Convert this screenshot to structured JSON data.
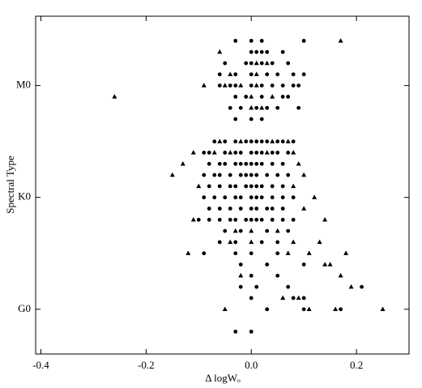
{
  "chart_data": {
    "type": "scatter",
    "xlabel": "Δ logWₒ",
    "ylabel": "Spectral Type",
    "xlim": [
      -0.41,
      0.3
    ],
    "ylim": [
      -4,
      26.2
    ],
    "xticks": [
      -0.4,
      -0.2,
      {
        "value": 0,
        "label": "0.0"
      },
      0.2
    ],
    "yticks": [
      {
        "value": 0,
        "label": "G0"
      },
      {
        "value": 10,
        "label": "K0"
      },
      {
        "value": 20,
        "label": "M0"
      }
    ],
    "grid": false,
    "series": [
      {
        "marker": "circle",
        "color": "#000000",
        "x": [
          -0.03,
          0.0,
          0.02,
          0.1,
          0.0,
          0.01,
          0.02,
          0.03,
          0.06,
          -0.05,
          -0.01,
          0.0,
          0.02,
          0.04,
          0.07,
          -0.06,
          -0.03,
          0.0,
          0.03,
          0.05,
          0.08,
          0.1,
          -0.06,
          -0.04,
          -0.03,
          0.0,
          0.02,
          0.04,
          0.06,
          0.08,
          0.09,
          -0.03,
          -0.01,
          0.02,
          0.06,
          0.07,
          -0.04,
          -0.02,
          0.01,
          0.03,
          0.05,
          0.09,
          -0.03,
          0.0,
          0.02,
          -0.07,
          -0.05,
          -0.03,
          -0.01,
          0.0,
          0.01,
          0.02,
          0.03,
          0.05,
          0.06,
          0.08,
          -0.09,
          -0.08,
          -0.05,
          -0.03,
          -0.02,
          0.0,
          0.01,
          0.02,
          0.04,
          0.05,
          0.07,
          -0.08,
          -0.06,
          -0.05,
          -0.03,
          -0.02,
          -0.01,
          0.0,
          0.01,
          0.02,
          0.04,
          0.06,
          -0.09,
          -0.07,
          -0.06,
          -0.04,
          -0.02,
          -0.01,
          0.0,
          0.01,
          0.03,
          0.05,
          0.07,
          -0.08,
          -0.06,
          -0.04,
          -0.03,
          -0.01,
          0.0,
          0.01,
          0.02,
          0.04,
          0.06,
          -0.09,
          -0.07,
          -0.05,
          -0.03,
          -0.02,
          0.0,
          0.01,
          0.02,
          0.04,
          0.06,
          0.08,
          -0.08,
          -0.06,
          -0.04,
          -0.02,
          0.0,
          0.01,
          0.03,
          0.04,
          0.06,
          -0.1,
          -0.08,
          -0.06,
          -0.04,
          -0.03,
          -0.01,
          0.0,
          0.01,
          0.02,
          0.04,
          0.06,
          0.08,
          -0.05,
          -0.02,
          0.03,
          0.07,
          -0.06,
          -0.03,
          0.02,
          0.05,
          -0.09,
          -0.03,
          0.0,
          0.05,
          -0.02,
          0.03,
          0.1,
          0.0,
          0.05,
          -0.02,
          0.01,
          0.07,
          0.21,
          0.0,
          0.08,
          0.1,
          0.03,
          0.1,
          0.17,
          -0.03,
          0.0
        ],
        "values": [
          24,
          24,
          24,
          24,
          23,
          23,
          23,
          23,
          23,
          22,
          22,
          22,
          22,
          22,
          22,
          21,
          21,
          21,
          21,
          21,
          21,
          21,
          20,
          20,
          20,
          20,
          20,
          20,
          20,
          20,
          20,
          19,
          19,
          19,
          19,
          19,
          18,
          18,
          18,
          18,
          18,
          18,
          17,
          17,
          17,
          15,
          15,
          15,
          15,
          15,
          15,
          15,
          15,
          15,
          15,
          15,
          14,
          14,
          14,
          14,
          14,
          14,
          14,
          14,
          14,
          14,
          14,
          13,
          13,
          13,
          13,
          13,
          13,
          13,
          13,
          13,
          13,
          13,
          12,
          12,
          12,
          12,
          12,
          12,
          12,
          12,
          12,
          12,
          12,
          11,
          11,
          11,
          11,
          11,
          11,
          11,
          11,
          11,
          11,
          10,
          10,
          10,
          10,
          10,
          10,
          10,
          10,
          10,
          10,
          10,
          9,
          9,
          9,
          9,
          9,
          9,
          9,
          9,
          9,
          8,
          8,
          8,
          8,
          8,
          8,
          8,
          8,
          8,
          8,
          8,
          8,
          7,
          7,
          7,
          7,
          6,
          6,
          6,
          6,
          5,
          5,
          5,
          5,
          4,
          4,
          4,
          3,
          3,
          2,
          2,
          2,
          2,
          1,
          1,
          1,
          0,
          0,
          0,
          -2,
          -2
        ]
      },
      {
        "marker": "triangle",
        "color": "#000000",
        "x": [
          0.17,
          -0.06,
          0.01,
          0.03,
          -0.04,
          0.01,
          -0.09,
          -0.05,
          -0.02,
          0.01,
          -0.26,
          0.0,
          0.04,
          0.0,
          0.02,
          -0.06,
          -0.02,
          0.04,
          0.07,
          -0.11,
          -0.07,
          -0.04,
          0.03,
          0.08,
          -0.13,
          0.09,
          -0.15,
          0.1,
          -0.1,
          0.08,
          0.12,
          0.1,
          -0.11,
          0.14,
          -0.03,
          0.0,
          0.05,
          -0.04,
          0.0,
          0.08,
          0.13,
          -0.12,
          0.07,
          0.11,
          0.18,
          0.14,
          0.15,
          -0.02,
          0.17,
          0.19,
          0.06,
          0.09,
          -0.05,
          0.11,
          0.16,
          0.25
        ],
        "values": [
          24,
          23,
          22,
          22,
          21,
          21,
          20,
          20,
          20,
          20,
          19,
          19,
          19,
          18,
          18,
          15,
          15,
          15,
          15,
          14,
          14,
          14,
          14,
          14,
          13,
          13,
          12,
          12,
          11,
          11,
          10,
          9,
          8,
          8,
          7,
          7,
          7,
          6,
          6,
          6,
          6,
          5,
          5,
          5,
          5,
          4,
          4,
          3,
          3,
          2,
          1,
          1,
          0,
          0,
          0,
          0
        ]
      }
    ]
  }
}
